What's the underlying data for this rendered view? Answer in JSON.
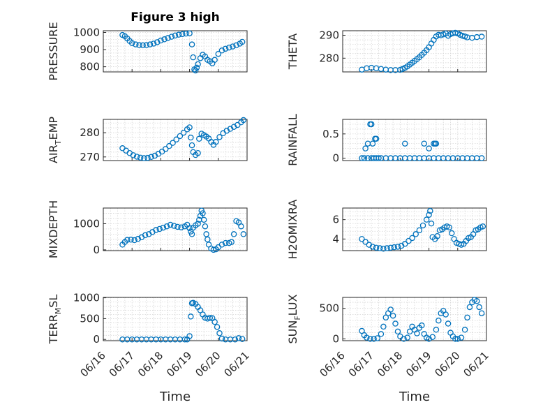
{
  "chart_data": [
    {
      "type": "scatter",
      "title": "Figure 3 high",
      "ylabel": "PRESSURE",
      "ylim": [
        770,
        1010
      ],
      "yticks": [
        800,
        900,
        1000
      ],
      "xlim": [
        "06/16",
        "06/21"
      ],
      "xlabel": "",
      "color": "#0072BD",
      "grid": true,
      "x": [
        "06/16 16:00",
        "06/16 18:00",
        "06/16 20:00",
        "06/16 22:00",
        "06/17 00:00",
        "06/17 03:00",
        "06/17 06:00",
        "06/17 09:00",
        "06/17 12:00",
        "06/17 15:00",
        "06/17 18:00",
        "06/17 21:00",
        "06/18 00:00",
        "06/18 03:00",
        "06/18 06:00",
        "06/18 09:00",
        "06/18 12:00",
        "06/18 15:00",
        "06/18 18:00",
        "06/18 21:00",
        "06/19 00:00",
        "06/19 02:00",
        "06/19 03:00",
        "06/19 04:00",
        "06/19 05:00",
        "06/19 06:00",
        "06/19 07:00",
        "06/19 09:00",
        "06/19 11:00",
        "06/19 13:00",
        "06/19 15:00",
        "06/19 17:00",
        "06/19 19:00",
        "06/19 21:00",
        "06/20 00:00",
        "06/20 03:00",
        "06/20 06:00",
        "06/20 09:00",
        "06/20 12:00",
        "06/20 15:00",
        "06/20 18:00",
        "06/20 20:00"
      ],
      "y": [
        985,
        978,
        965,
        950,
        938,
        930,
        926,
        925,
        926,
        930,
        935,
        943,
        953,
        960,
        968,
        975,
        982,
        987,
        990,
        993,
        995,
        930,
        855,
        785,
        778,
        795,
        815,
        850,
        870,
        860,
        840,
        832,
        820,
        840,
        875,
        895,
        905,
        912,
        918,
        925,
        935,
        945
      ]
    },
    {
      "type": "scatter",
      "title": "",
      "ylabel": "THETA",
      "ylim": [
        274,
        292
      ],
      "yticks": [
        280,
        290
      ],
      "xlim": [
        "06/16",
        "06/21"
      ],
      "xlabel": "",
      "color": "#0072BD",
      "grid": true,
      "x": [
        "06/16 16:00",
        "06/16 20:00",
        "06/17 00:00",
        "06/17 04:00",
        "06/17 08:00",
        "06/17 12:00",
        "06/17 16:00",
        "06/17 20:00",
        "06/18 00:00",
        "06/18 02:00",
        "06/18 04:00",
        "06/18 06:00",
        "06/18 08:00",
        "06/18 10:00",
        "06/18 12:00",
        "06/18 14:00",
        "06/18 16:00",
        "06/18 18:00",
        "06/18 20:00",
        "06/18 22:00",
        "06/19 00:00",
        "06/19 02:00",
        "06/19 04:00",
        "06/19 06:00",
        "06/19 08:00",
        "06/19 10:00",
        "06/19 12:00",
        "06/19 14:00",
        "06/19 16:00",
        "06/19 18:00",
        "06/19 20:00",
        "06/19 22:00",
        "06/20 00:00",
        "06/20 02:00",
        "06/20 04:00",
        "06/20 06:00",
        "06/20 08:00",
        "06/20 12:00",
        "06/20 16:00",
        "06/20 20:00"
      ],
      "y": [
        275.0,
        275.6,
        275.8,
        275.6,
        275.3,
        275.0,
        274.8,
        274.8,
        274.9,
        275.3,
        275.8,
        276.4,
        277.2,
        278.0,
        278.8,
        279.6,
        280.4,
        281.4,
        282.4,
        283.5,
        284.8,
        286.4,
        288.0,
        289.5,
        290.2,
        290.0,
        290.4,
        290.8,
        289.8,
        290.5,
        290.9,
        291.1,
        290.8,
        290.2,
        289.8,
        289.5,
        289.1,
        288.9,
        289.2,
        289.4
      ]
    },
    {
      "type": "scatter",
      "title": "",
      "ylabel": "AIR_T_EMP",
      "ylim": [
        268.5,
        285.5
      ],
      "yticks": [
        270,
        280
      ],
      "xlim": [
        "06/16",
        "06/21"
      ],
      "xlabel": "",
      "color": "#0072BD",
      "grid": true,
      "x": [
        "06/16 16:00",
        "06/16 19:00",
        "06/16 22:00",
        "06/17 01:00",
        "06/17 04:00",
        "06/17 07:00",
        "06/17 10:00",
        "06/17 13:00",
        "06/17 16:00",
        "06/17 19:00",
        "06/17 22:00",
        "06/18 01:00",
        "06/18 04:00",
        "06/18 07:00",
        "06/18 10:00",
        "06/18 13:00",
        "06/18 16:00",
        "06/18 19:00",
        "06/18 22:00",
        "06/19 00:00",
        "06/19 01:00",
        "06/19 02:00",
        "06/19 03:00",
        "06/19 05:00",
        "06/19 07:00",
        "06/19 08:00",
        "06/19 10:00",
        "06/19 12:00",
        "06/19 14:00",
        "06/19 16:00",
        "06/19 18:00",
        "06/19 20:00",
        "06/19 22:00",
        "06/20 01:00",
        "06/20 04:00",
        "06/20 07:00",
        "06/20 10:00",
        "06/20 13:00",
        "06/20 16:00",
        "06/20 19:00",
        "06/20 21:00"
      ],
      "y": [
        273.6,
        272.6,
        271.6,
        270.7,
        270.1,
        269.7,
        269.5,
        269.6,
        270.0,
        270.5,
        271.3,
        272.2,
        273.3,
        274.5,
        275.8,
        277.2,
        278.6,
        280.0,
        281.4,
        282.2,
        278.0,
        274.8,
        272.0,
        270.8,
        271.6,
        277.5,
        279.6,
        279.0,
        278.4,
        277.6,
        276.2,
        275.0,
        276.2,
        278.2,
        279.8,
        280.8,
        281.6,
        282.4,
        283.2,
        284.3,
        285.2
      ]
    },
    {
      "type": "scatter",
      "title": "",
      "ylabel": "RAINFALL",
      "ylim": [
        -0.05,
        0.8
      ],
      "yticks": [
        0,
        0.5
      ],
      "xlim": [
        "06/16",
        "06/21"
      ],
      "xlabel": "",
      "color": "#0072BD",
      "grid": true,
      "x": [
        "06/16 16:00",
        "06/16 18:00",
        "06/16 21:00",
        "06/17 00:00",
        "06/17 02:00",
        "06/17 04:00",
        "06/17 06:00",
        "06/17 08:00",
        "06/17 12:00",
        "06/17 16:00",
        "06/17 20:00",
        "06/18 00:00",
        "06/18 04:00",
        "06/18 08:00",
        "06/18 12:00",
        "06/18 16:00",
        "06/18 20:00",
        "06/19 00:00",
        "06/19 04:00",
        "06/19 08:00",
        "06/19 12:00",
        "06/19 16:00",
        "06/19 20:00",
        "06/20 00:00",
        "06/20 04:00",
        "06/20 08:00",
        "06/20 12:00",
        "06/20 16:00",
        "06/20 20:00",
        "06/16 19:00",
        "06/16 21:00",
        "06/16 23:00",
        "06/17 00:00",
        "06/17 01:00",
        "06/17 03:00",
        "06/17 04:00",
        "06/18 04:00",
        "06/18 20:00",
        "06/19 00:00",
        "06/19 04:00",
        "06/19 05:00",
        "06/19 06:00"
      ],
      "y": [
        0,
        0,
        0,
        0,
        0,
        0,
        0,
        0,
        0,
        0,
        0,
        0,
        0,
        0,
        0,
        0,
        0,
        0,
        0,
        0,
        0,
        0,
        0,
        0,
        0,
        0,
        0,
        0,
        0,
        0.2,
        0.3,
        0.7,
        0.7,
        0.3,
        0.4,
        0.4,
        0.3,
        0.3,
        0.2,
        0.3,
        0.3,
        0.3
      ]
    },
    {
      "type": "scatter",
      "title": "",
      "ylabel": "MIXDEPTH",
      "ylim": [
        -30,
        1600
      ],
      "yticks": [
        0,
        1000
      ],
      "xlim": [
        "06/16",
        "06/21"
      ],
      "xlabel": "",
      "color": "#0072BD",
      "grid": true,
      "x": [
        "06/16 16:00",
        "06/16 18:00",
        "06/16 20:00",
        "06/16 23:00",
        "06/17 02:00",
        "06/17 05:00",
        "06/17 08:00",
        "06/17 11:00",
        "06/17 14:00",
        "06/17 17:00",
        "06/17 20:00",
        "06/17 23:00",
        "06/18 02:00",
        "06/18 05:00",
        "06/18 08:00",
        "06/18 11:00",
        "06/18 14:00",
        "06/18 17:00",
        "06/18 20:00",
        "06/18 22:00",
        "06/19 00:00",
        "06/19 01:00",
        "06/19 02:00",
        "06/19 03:00",
        "06/19 05:00",
        "06/19 07:00",
        "06/19 08:00",
        "06/19 09:00",
        "06/19 10:00",
        "06/19 11:00",
        "06/19 12:00",
        "06/19 13:00",
        "06/19 14:00",
        "06/19 15:00",
        "06/19 16:00",
        "06/19 18:00",
        "06/19 20:00",
        "06/19 22:00",
        "06/20 00:00",
        "06/20 03:00",
        "06/20 06:00",
        "06/20 09:00",
        "06/20 11:00",
        "06/20 13:00",
        "06/20 15:00",
        "06/20 17:00",
        "06/20 19:00",
        "06/20 21:00"
      ],
      "y": [
        200,
        300,
        380,
        390,
        370,
        420,
        480,
        560,
        600,
        680,
        760,
        800,
        850,
        900,
        960,
        920,
        880,
        860,
        900,
        960,
        830,
        700,
        600,
        850,
        940,
        1000,
        1150,
        1300,
        1500,
        1400,
        1150,
        900,
        600,
        400,
        200,
        50,
        0,
        20,
        100,
        200,
        260,
        260,
        300,
        600,
        1100,
        1050,
        900,
        600
      ]
    },
    {
      "type": "scatter",
      "title": "",
      "ylabel": "H2OMIXRA",
      "ylim": [
        2.8,
        7.2
      ],
      "yticks": [
        4,
        6
      ],
      "xlim": [
        "06/16",
        "06/21"
      ],
      "xlabel": "",
      "color": "#0072BD",
      "grid": true,
      "x": [
        "06/16 16:00",
        "06/16 19:00",
        "06/16 22:00",
        "06/17 01:00",
        "06/17 04:00",
        "06/17 07:00",
        "06/17 10:00",
        "06/17 13:00",
        "06/17 16:00",
        "06/17 19:00",
        "06/17 22:00",
        "06/18 01:00",
        "06/18 04:00",
        "06/18 07:00",
        "06/18 10:00",
        "06/18 13:00",
        "06/18 16:00",
        "06/18 19:00",
        "06/18 22:00",
        "06/19 00:00",
        "06/19 01:00",
        "06/19 02:00",
        "06/19 03:00",
        "06/19 05:00",
        "06/19 07:00",
        "06/19 09:00",
        "06/19 11:00",
        "06/19 13:00",
        "06/19 15:00",
        "06/19 17:00",
        "06/19 19:00",
        "06/19 21:00",
        "06/19 23:00",
        "06/20 01:00",
        "06/20 03:00",
        "06/20 05:00",
        "06/20 07:00",
        "06/20 09:00",
        "06/20 11:00",
        "06/20 13:00",
        "06/20 15:00",
        "06/20 17:00",
        "06/20 19:00",
        "06/20 21:00"
      ],
      "y": [
        4.0,
        3.7,
        3.4,
        3.2,
        3.1,
        3.05,
        3.0,
        3.05,
        3.1,
        3.15,
        3.2,
        3.3,
        3.5,
        3.8,
        4.1,
        4.5,
        4.9,
        5.4,
        6.0,
        6.5,
        6.9,
        5.6,
        4.2,
        4.0,
        4.3,
        4.9,
        5.0,
        5.2,
        5.3,
        5.2,
        4.6,
        4.0,
        3.6,
        3.5,
        3.4,
        3.5,
        3.8,
        4.1,
        4.2,
        4.5,
        4.9,
        5.0,
        5.2,
        5.3
      ]
    },
    {
      "type": "scatter",
      "title": "",
      "ylabel": "TERR_M_SL",
      "ylim": [
        -30,
        1010
      ],
      "yticks": [
        0,
        500,
        1000
      ],
      "xlim": [
        "06/16",
        "06/21"
      ],
      "xlabel": "Time",
      "color": "#0072BD",
      "grid": true,
      "x": [
        "06/16 16:00",
        "06/16 20:00",
        "06/17 00:00",
        "06/17 04:00",
        "06/17 08:00",
        "06/17 12:00",
        "06/17 16:00",
        "06/17 20:00",
        "06/18 00:00",
        "06/18 04:00",
        "06/18 08:00",
        "06/18 12:00",
        "06/18 16:00",
        "06/18 20:00",
        "06/18 22:00",
        "06/19 00:00",
        "06/19 01:00",
        "06/19 02:00",
        "06/19 03:00",
        "06/19 05:00",
        "06/19 07:00",
        "06/19 09:00",
        "06/19 11:00",
        "06/19 13:00",
        "06/19 15:00",
        "06/19 17:00",
        "06/19 19:00",
        "06/19 21:00",
        "06/19 23:00",
        "06/20 01:00",
        "06/20 03:00",
        "06/20 06:00",
        "06/20 10:00",
        "06/20 14:00",
        "06/20 17:00",
        "06/20 20:00"
      ],
      "y": [
        0,
        0,
        0,
        0,
        0,
        0,
        0,
        0,
        0,
        0,
        0,
        0,
        0,
        0,
        0,
        80,
        550,
        870,
        880,
        850,
        780,
        700,
        600,
        520,
        500,
        520,
        510,
        420,
        300,
        150,
        20,
        0,
        0,
        0,
        30,
        10
      ]
    },
    {
      "type": "scatter",
      "title": "",
      "ylabel": "SUN_F_LUX",
      "ylim": [
        -30,
        680
      ],
      "yticks": [
        0,
        500
      ],
      "xlim": [
        "06/16",
        "06/21"
      ],
      "xlabel": "Time",
      "color": "#0072BD",
      "grid": true,
      "x": [
        "06/16 16:00",
        "06/16 18:00",
        "06/16 20:00",
        "06/16 23:00",
        "06/17 02:00",
        "06/17 05:00",
        "06/17 08:00",
        "06/17 10:00",
        "06/17 12:00",
        "06/17 14:00",
        "06/17 16:00",
        "06/17 18:00",
        "06/17 20:00",
        "06/17 22:00",
        "06/18 00:00",
        "06/18 03:00",
        "06/18 06:00",
        "06/18 08:00",
        "06/18 10:00",
        "06/18 12:00",
        "06/18 14:00",
        "06/18 16:00",
        "06/18 18:00",
        "06/18 20:00",
        "06/18 22:00",
        "06/19 00:00",
        "06/19 03:00",
        "06/19 06:00",
        "06/19 08:00",
        "06/19 10:00",
        "06/19 12:00",
        "06/19 14:00",
        "06/19 16:00",
        "06/19 18:00",
        "06/19 20:00",
        "06/19 22:00",
        "06/20 00:00",
        "06/20 03:00",
        "06/20 06:00",
        "06/20 08:00",
        "06/20 10:00",
        "06/20 12:00",
        "06/20 14:00",
        "06/20 16:00",
        "06/20 18:00",
        "06/20 20:00"
      ],
      "y": [
        130,
        60,
        20,
        0,
        0,
        10,
        80,
        200,
        350,
        420,
        480,
        380,
        250,
        120,
        40,
        0,
        20,
        120,
        200,
        150,
        90,
        180,
        220,
        80,
        20,
        0,
        30,
        150,
        300,
        420,
        460,
        400,
        250,
        100,
        40,
        0,
        0,
        20,
        150,
        350,
        520,
        600,
        640,
        620,
        520,
        420
      ]
    }
  ],
  "xticks": [
    "06/16",
    "06/17",
    "06/18",
    "06/19",
    "06/20",
    "06/21"
  ]
}
